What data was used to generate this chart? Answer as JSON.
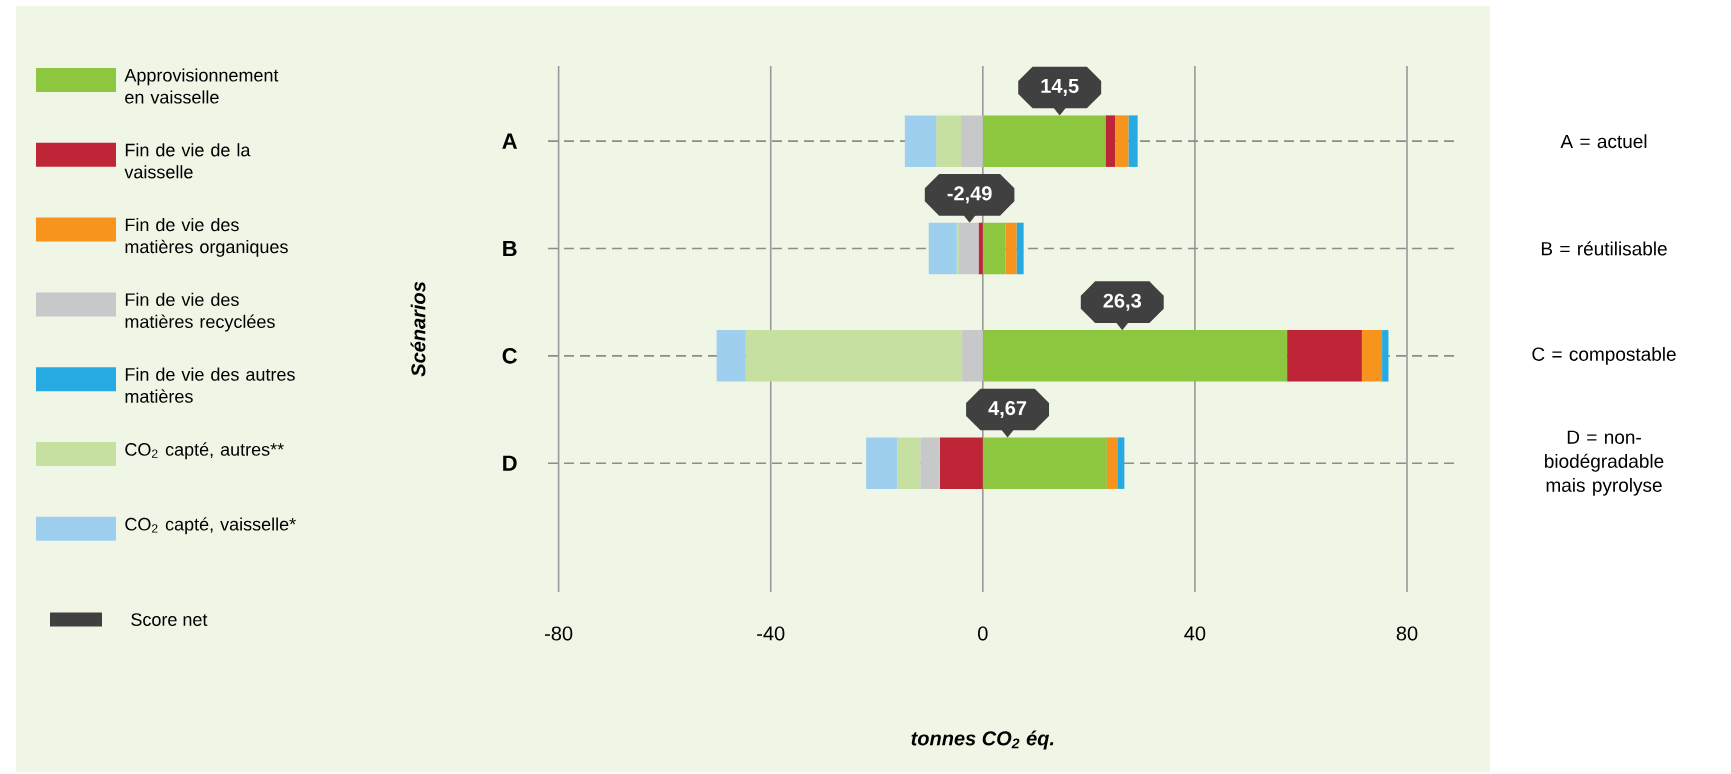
{
  "chart_data": {
    "type": "bar",
    "orientation": "horizontal",
    "stacked": true,
    "xlabel": "tonnes CO$_{2}$ éq.",
    "ylabel": "Scénarios",
    "categories": [
      "A",
      "B",
      "C",
      "D"
    ],
    "xlim": [
      -82,
      90
    ],
    "xticks": [
      -80,
      -40,
      0,
      40,
      80
    ],
    "grid": true,
    "legend": "left",
    "series": [
      {
        "name": "Approvisionnement en vaisselle",
        "color": "#8dc63f",
        "values": [
          23.2,
          4.3,
          57.4,
          23.4
        ]
      },
      {
        "name": "Fin de vie de la vaisselle",
        "color": "#be2536",
        "values": [
          1.8,
          -0.8,
          14.1,
          -8.1
        ]
      },
      {
        "name": "Fin de vie des matières organiques",
        "color": "#f7941d",
        "values": [
          2.5,
          2.1,
          3.8,
          2.1
        ]
      },
      {
        "name": "Fin de vie des matières recyclées",
        "color": "#c7c8ca",
        "values": [
          -4.1,
          -3.7,
          -3.9,
          -3.7
        ]
      },
      {
        "name": "Fin de vie des autres matières",
        "color": "#27aae1",
        "values": [
          1.7,
          1.3,
          1.2,
          1.2
        ]
      },
      {
        "name": "CO$_{2}$ capté, autres**",
        "color": "#c5e0a0",
        "values": [
          -4.7,
          -0.4,
          -40.8,
          -4.3
        ]
      },
      {
        "name": "CO$_{2}$ capté, vaisselle*",
        "color": "#9fcfef",
        "values": [
          -5.9,
          -5.3,
          -5.5,
          -5.9
        ]
      },
      {
        "name": "Score net",
        "type": "scatter",
        "color": "#404040",
        "values": [
          14.5,
          -2.49,
          26.3,
          4.67
        ],
        "value_labels": [
          "14,5",
          "-2,49",
          "26,3",
          "4,67"
        ]
      }
    ],
    "annotations": [
      "A = actuel",
      "B = réutilisable",
      "C = compostable",
      "D = non-biodégradable mais pyrolyse"
    ]
  }
}
